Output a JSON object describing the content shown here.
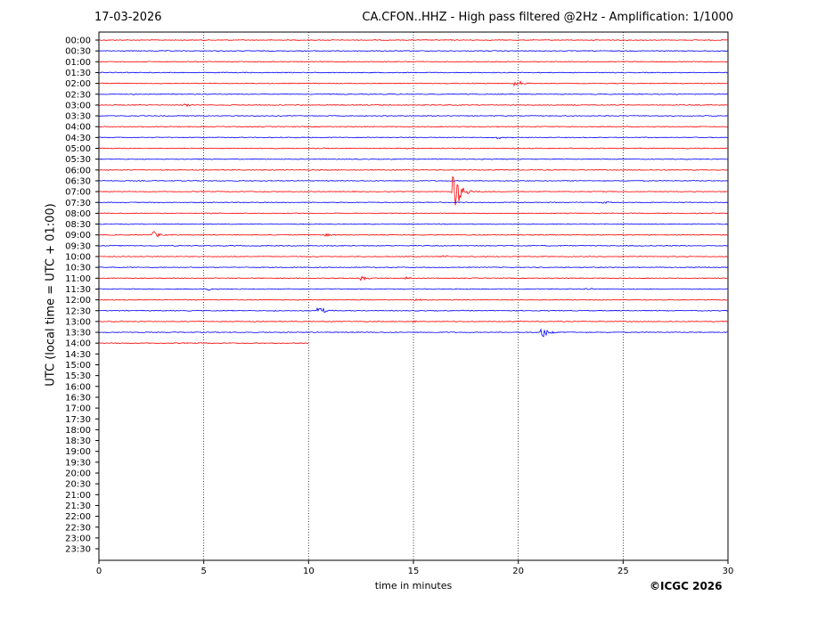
{
  "header": {
    "date": "17-03-2026",
    "title": "CA.CFON..HHZ - High pass filtered @2Hz - Amplification: 1/1000"
  },
  "copyright": "©ICGC 2026",
  "chart_data": {
    "type": "line",
    "title": "CA.CFON..HHZ - High pass filtered @2Hz - Amplification: 1/1000",
    "xlabel": "time in minutes",
    "ylabel": "UTC (local time = UTC + 01:00)",
    "xlim": [
      0,
      30
    ],
    "xticks": [
      0,
      5,
      10,
      15,
      20,
      25,
      30
    ],
    "vertical_gridlines_at": [
      5,
      10,
      15,
      20,
      25
    ],
    "grid": "vertical dotted",
    "row_labels": [
      "00:00",
      "00:30",
      "01:00",
      "01:30",
      "02:00",
      "02:30",
      "03:00",
      "03:30",
      "04:00",
      "04:30",
      "05:00",
      "05:30",
      "06:00",
      "06:30",
      "07:00",
      "07:30",
      "08:00",
      "08:30",
      "09:00",
      "09:30",
      "10:00",
      "10:30",
      "11:00",
      "11:30",
      "12:00",
      "12:30",
      "13:00",
      "13:30",
      "14:00",
      "14:30",
      "15:00",
      "15:30",
      "16:00",
      "16:30",
      "17:00",
      "17:30",
      "18:00",
      "18:30",
      "19:00",
      "19:30",
      "20:00",
      "20:30",
      "21:00",
      "21:30",
      "22:00",
      "22:30",
      "23:00",
      "23:30"
    ],
    "trace_colors": [
      "#ff0000",
      "#0000ff"
    ],
    "recorded_rows": 29,
    "last_row_end_minute": 10,
    "events": [
      {
        "row": 4,
        "minute": 19.8,
        "amplitude": 3
      },
      {
        "row": 4,
        "minute": 20.1,
        "amplitude": 2
      },
      {
        "row": 6,
        "minute": 4.1,
        "amplitude": 2
      },
      {
        "row": 9,
        "minute": 19.0,
        "amplitude": 1.5
      },
      {
        "row": 14,
        "minute": 16.9,
        "amplitude": 28
      },
      {
        "row": 15,
        "minute": 24.0,
        "amplitude": 1.5
      },
      {
        "row": 18,
        "minute": 2.6,
        "amplitude": 4
      },
      {
        "row": 18,
        "minute": 10.8,
        "amplitude": 2
      },
      {
        "row": 20,
        "minute": 16.3,
        "amplitude": 2.5
      },
      {
        "row": 22,
        "minute": 12.5,
        "amplitude": 3
      },
      {
        "row": 22,
        "minute": 14.6,
        "amplitude": 1.5
      },
      {
        "row": 23,
        "minute": 5.2,
        "amplitude": 1.5
      },
      {
        "row": 23,
        "minute": 23.2,
        "amplitude": 1.5
      },
      {
        "row": 24,
        "minute": 15.0,
        "amplitude": 1.5
      },
      {
        "row": 25,
        "minute": 10.4,
        "amplitude": 6
      },
      {
        "row": 25,
        "minute": 8.4,
        "amplitude": 1.5
      },
      {
        "row": 26,
        "minute": 15.0,
        "amplitude": 1.5
      },
      {
        "row": 27,
        "minute": 21.1,
        "amplitude": 8
      }
    ]
  }
}
